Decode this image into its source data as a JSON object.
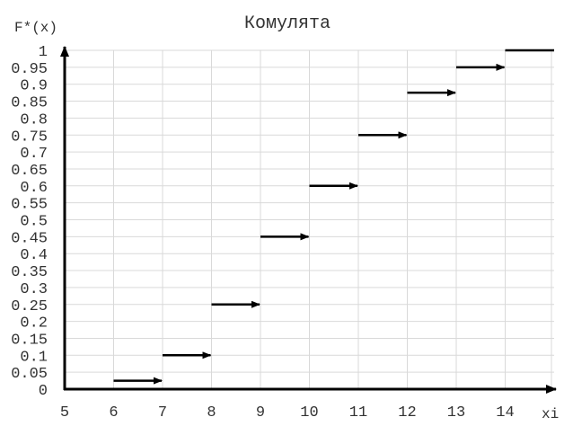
{
  "chart_data": {
    "type": "line",
    "subtype": "step-cumulative",
    "title": "Комулята",
    "ylabel": "F*(x)",
    "xlabel": "xi",
    "xlim": [
      5,
      15
    ],
    "ylim": [
      0,
      1
    ],
    "x_ticks": [
      5,
      6,
      7,
      8,
      9,
      10,
      11,
      12,
      13,
      14
    ],
    "y_ticks": [
      0,
      0.05,
      0.1,
      0.15,
      0.2,
      0.25,
      0.3,
      0.35,
      0.4,
      0.45,
      0.5,
      0.55,
      0.6,
      0.65,
      0.7,
      0.75,
      0.8,
      0.85,
      0.9,
      0.95,
      1
    ],
    "grid": true,
    "steps": [
      {
        "x_start": 5,
        "x_end": 6,
        "y": 0,
        "arrow": true
      },
      {
        "x_start": 6,
        "x_end": 7,
        "y": 0.025,
        "arrow": true
      },
      {
        "x_start": 7,
        "x_end": 8,
        "y": 0.1,
        "arrow": true
      },
      {
        "x_start": 8,
        "x_end": 9,
        "y": 0.25,
        "arrow": true
      },
      {
        "x_start": 9,
        "x_end": 10,
        "y": 0.45,
        "arrow": true
      },
      {
        "x_start": 10,
        "x_end": 11,
        "y": 0.6,
        "arrow": true
      },
      {
        "x_start": 11,
        "x_end": 12,
        "y": 0.75,
        "arrow": true
      },
      {
        "x_start": 12,
        "x_end": 13,
        "y": 0.875,
        "arrow": true
      },
      {
        "x_start": 13,
        "x_end": 14,
        "y": 0.95,
        "arrow": true
      },
      {
        "x_start": 14,
        "x_end": 15,
        "y": 1,
        "arrow": false
      }
    ],
    "colors": {
      "series": "#000000",
      "grid": "#d9d9d9",
      "text": "#333333"
    }
  }
}
